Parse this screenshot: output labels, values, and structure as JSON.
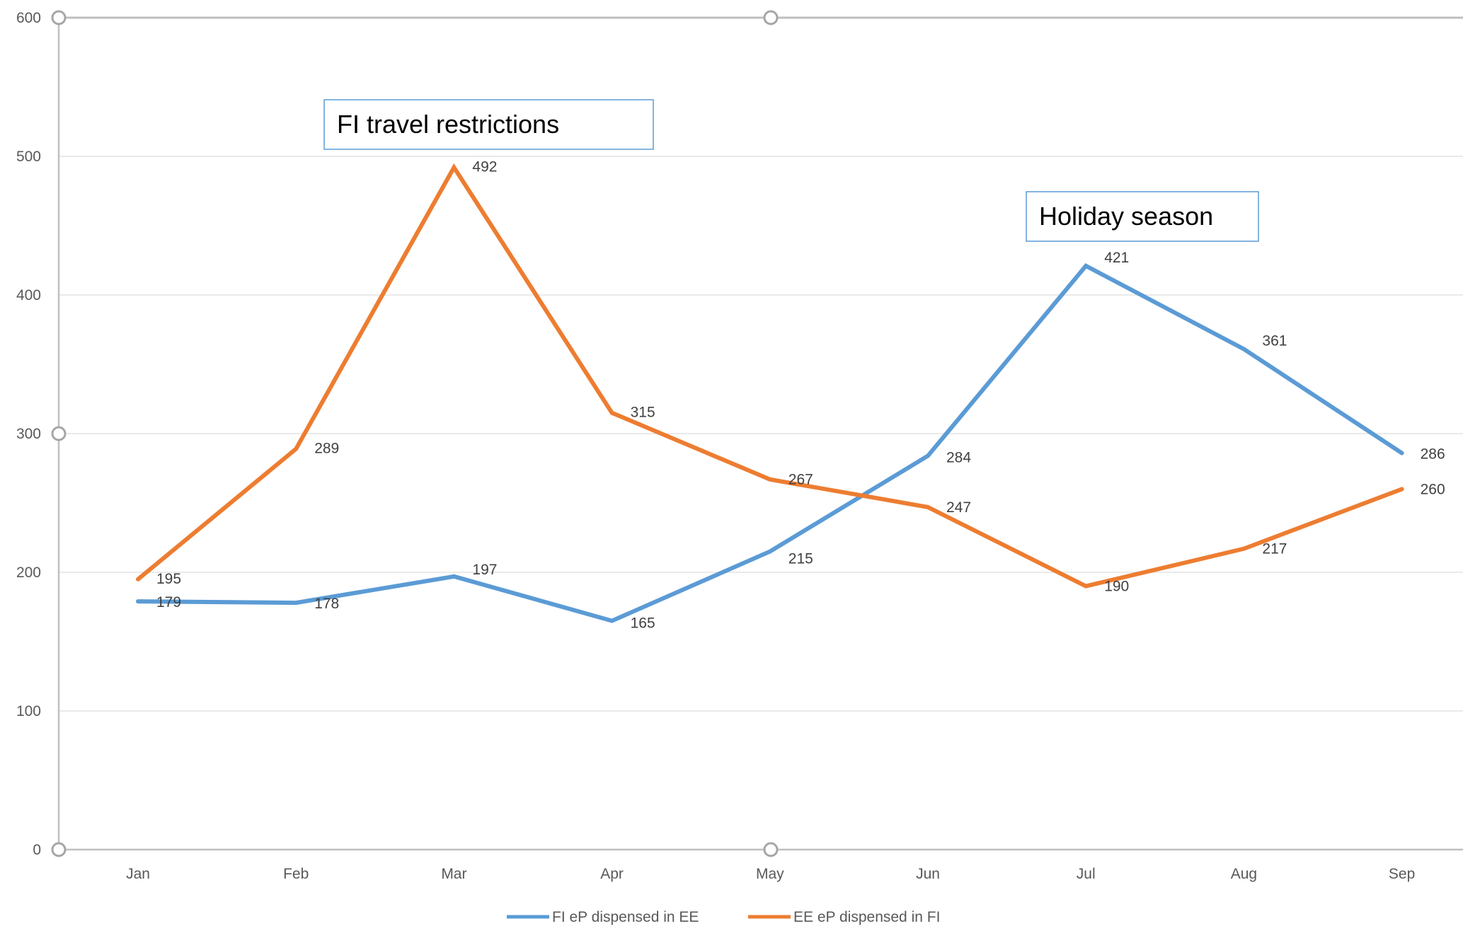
{
  "chart_data": {
    "type": "line",
    "title": "",
    "xlabel": "",
    "ylabel": "",
    "ylim": [
      0,
      600
    ],
    "y_ticks": [
      "0",
      "100",
      "200",
      "300",
      "400",
      "500",
      "600"
    ],
    "categories": [
      "Jan",
      "Feb",
      "Mar",
      "Apr",
      "May",
      "Jun",
      "Jul",
      "Aug",
      "Sep"
    ],
    "grid": true,
    "legend_position": "bottom",
    "series": [
      {
        "name": "FI eP dispensed in EE",
        "color": "#5b9bd5",
        "values": [
          179,
          178,
          197,
          165,
          215,
          284,
          421,
          361,
          286
        ]
      },
      {
        "name": "EE eP dispensed in FI",
        "color": "#ed7d31",
        "values": [
          195,
          289,
          492,
          315,
          267,
          247,
          190,
          217,
          260
        ]
      }
    ],
    "annotations": [
      {
        "text": "FI travel restrictions"
      },
      {
        "text": "Holiday season"
      }
    ]
  }
}
